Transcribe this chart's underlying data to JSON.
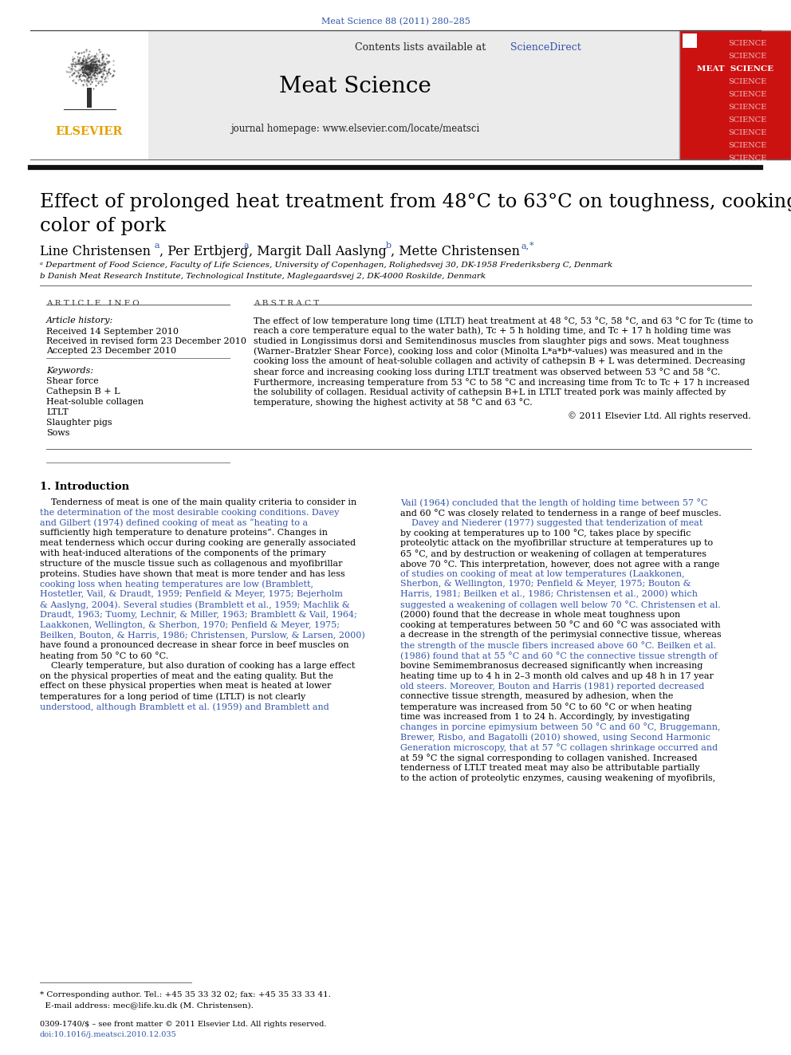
{
  "journal_ref": "Meat Science 88 (2011) 280–285",
  "contents_line": "Contents lists available at ",
  "sciencedirect_text": "ScienceDirect",
  "journal_name": "Meat Science",
  "homepage_line": "journal homepage: www.elsevier.com/locate/meatsci",
  "title_line1": "Effect of prolonged heat treatment from 48°C to 63°C on toughness, cooking loss and",
  "title_line2": "color of pork",
  "affil_a": "ᵃ Department of Food Science, Faculty of Life Sciences, University of Copenhagen, Rolighedsvej 30, DK-1958 Frederiksberg C, Denmark",
  "affil_b": "b Danish Meat Research Institute, Technological Institute, Maglegaardsvej 2, DK-4000 Roskilde, Denmark",
  "article_info_header": "A R T I C L E   I N F O",
  "abstract_header": "A B S T R A C T",
  "article_history_label": "Article history:",
  "received1": "Received 14 September 2010",
  "received2": "Received in revised form 23 December 2010",
  "accepted": "Accepted 23 December 2010",
  "keywords_label": "Keywords:",
  "keywords": [
    "Shear force",
    "Cathepsin B + L",
    "Heat-soluble collagen",
    "LTLT",
    "Slaughter pigs",
    "Sows"
  ],
  "abstract_lines": [
    "The effect of low temperature long time (LTLT) heat treatment at 48 °C, 53 °C, 58 °C, and 63 °C for Tc (time to",
    "reach a core temperature equal to the water bath), Tc + 5 h holding time, and Tc + 17 h holding time was",
    "studied in Longissimus dorsi and Semitendinosus muscles from slaughter pigs and sows. Meat toughness",
    "(Warner–Bratzler Shear Force), cooking loss and color (Minolta L*a*b*-values) was measured and in the",
    "cooking loss the amount of heat-soluble collagen and activity of cathepsin B + L was determined. Decreasing",
    "shear force and increasing cooking loss during LTLT treatment was observed between 53 °C and 58 °C.",
    "Furthermore, increasing temperature from 53 °C to 58 °C and increasing time from Tc to Tc + 17 h increased",
    "the solubility of collagen. Residual activity of cathepsin B+L in LTLT treated pork was mainly affected by",
    "temperature, showing the highest activity at 58 °C and 63 °C."
  ],
  "copyright": "© 2011 Elsevier Ltd. All rights reserved.",
  "intro_header": "1. Introduction",
  "left_col_lines": [
    "    Tenderness of meat is one of the main quality criteria to consider in",
    "the determination of the most desirable cooking conditions. Davey",
    "and Gilbert (1974) defined cooking of meat as “heating to a",
    "sufficiently high temperature to denature proteins”. Changes in",
    "meat tenderness which occur during cooking are generally associated",
    "with heat-induced alterations of the components of the primary",
    "structure of the muscle tissue such as collagenous and myofibrillar",
    "proteins. Studies have shown that meat is more tender and has less",
    "cooking loss when heating temperatures are low (Bramblett,",
    "Hostetler, Vail, & Draudt, 1959; Penfield & Meyer, 1975; Bejerholm",
    "& Aaslyng, 2004). Several studies (Bramblett et al., 1959; Machlik &",
    "Draudt, 1963; Tuomy, Lechnir, & Miller, 1963; Bramblett & Vail, 1964;",
    "Laakkonen, Wellington, & Sherbon, 1970; Penfield & Meyer, 1975;",
    "Beilken, Bouton, & Harris, 1986; Christensen, Purslow, & Larsen, 2000)",
    "have found a pronounced decrease in shear force in beef muscles on",
    "heating from 50 °C to 60 °C.",
    "    Clearly temperature, but also duration of cooking has a large effect",
    "on the physical properties of meat and the eating quality. But the",
    "effect on these physical properties when meat is heated at lower",
    "temperatures for a long period of time (LTLT) is not clearly",
    "understood, although Bramblett et al. (1959) and Bramblett and"
  ],
  "left_col_blue": [
    1,
    2,
    8,
    9,
    10,
    11,
    12,
    13,
    20
  ],
  "right_col_lines": [
    "Vail (1964) concluded that the length of holding time between 57 °C",
    "and 60 °C was closely related to tenderness in a range of beef muscles.",
    "    Davey and Niederer (1977) suggested that tenderization of meat",
    "by cooking at temperatures up to 100 °C, takes place by specific",
    "proteolytic attack on the myofibrillar structure at temperatures up to",
    "65 °C, and by destruction or weakening of collagen at temperatures",
    "above 70 °C. This interpretation, however, does not agree with a range",
    "of studies on cooking of meat at low temperatures (Laakkonen,",
    "Sherbon, & Wellington, 1970; Penfield & Meyer, 1975; Bouton &",
    "Harris, 1981; Beilken et al., 1986; Christensen et al., 2000) which",
    "suggested a weakening of collagen well below 70 °C. Christensen et al.",
    "(2000) found that the decrease in whole meat toughness upon",
    "cooking at temperatures between 50 °C and 60 °C was associated with",
    "a decrease in the strength of the perimysial connective tissue, whereas",
    "the strength of the muscle fibers increased above 60 °C. Beilken et al.",
    "(1986) found that at 55 °C and 60 °C the connective tissue strength of",
    "bovine Semimembranosus decreased significantly when increasing",
    "heating time up to 4 h in 2–3 month old calves and up 48 h in 17 year",
    "old steers. Moreover, Bouton and Harris (1981) reported decreased",
    "connective tissue strength, measured by adhesion, when the",
    "temperature was increased from 50 °C to 60 °C or when heating",
    "time was increased from 1 to 24 h. Accordingly, by investigating",
    "changes in porcine epimysium between 50 °C and 60 °C, Bruggemann,",
    "Brewer, Risbo, and Bagatolli (2010) showed, using Second Harmonic",
    "Generation microscopy, that at 57 °C collagen shrinkage occurred and",
    "at 59 °C the signal corresponding to collagen vanished. Increased",
    "tenderness of LTLT treated meat may also be attributable partially",
    "to the action of proteolytic enzymes, causing weakening of myofibrils,"
  ],
  "right_col_blue": [
    0,
    2,
    7,
    8,
    9,
    10,
    14,
    15,
    18,
    22,
    23,
    24
  ],
  "footnote_line1": "* Corresponding author. Tel.: +45 35 33 32 02; fax: +45 35 33 33 41.",
  "footnote_line2": "  E-mail address: mec@life.ku.dk (M. Christensen).",
  "issn_line1": "0309-1740/$ – see front matter © 2011 Elsevier Ltd. All rights reserved.",
  "issn_line2": "doi:10.1016/j.meatsci.2010.12.035",
  "bg_color": "#ffffff",
  "link_color": "#3355aa",
  "header_bg": "#ebebeb",
  "elsevier_gold": "#e8a000",
  "cover_red": "#cc1111",
  "cover_text_color": "#f0c0c0",
  "cover_meat_color": "#ffffff"
}
